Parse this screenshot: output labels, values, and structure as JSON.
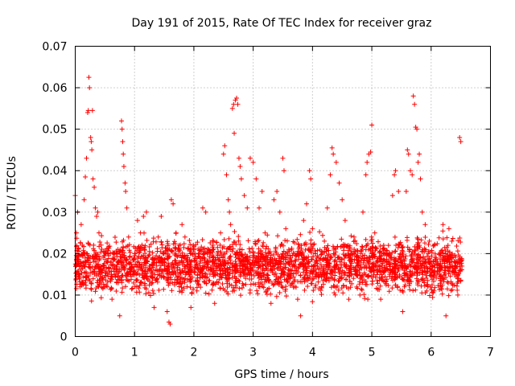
{
  "chart_data": {
    "type": "scatter",
    "title": "Day 191 of 2015, Rate Of TEC Index for receiver graz",
    "xlabel": "GPS time / hours",
    "ylabel": "ROTI / TECUs",
    "xlim": [
      0,
      7
    ],
    "ylim": [
      0,
      0.07
    ],
    "x_ticks": [
      "0",
      "1",
      "2",
      "3",
      "4",
      "5",
      "6",
      "7"
    ],
    "y_ticks": [
      "0",
      "0.01",
      "0.02",
      "0.03",
      "0.04",
      "0.05",
      "0.06",
      "0.07"
    ],
    "grid": true,
    "marker": "+",
    "series_color": "#ff0000",
    "series": [
      {
        "name": "ROTI",
        "points": [
          [
            0.0,
            0.034
          ],
          [
            0.02,
            0.025
          ],
          [
            0.04,
            0.03
          ],
          [
            0.06,
            0.018
          ],
          [
            0.08,
            0.012
          ],
          [
            0.1,
            0.027
          ],
          [
            0.12,
            0.022
          ],
          [
            0.15,
            0.033
          ],
          [
            0.17,
            0.0385
          ],
          [
            0.19,
            0.043
          ],
          [
            0.21,
            0.054
          ],
          [
            0.22,
            0.0545
          ],
          [
            0.23,
            0.0625
          ],
          [
            0.24,
            0.06
          ],
          [
            0.26,
            0.048
          ],
          [
            0.27,
            0.047
          ],
          [
            0.28,
            0.045
          ],
          [
            0.29,
            0.0545
          ],
          [
            0.3,
            0.038
          ],
          [
            0.32,
            0.036
          ],
          [
            0.34,
            0.031
          ],
          [
            0.36,
            0.029
          ],
          [
            0.38,
            0.03
          ],
          [
            0.4,
            0.025
          ],
          [
            0.42,
            0.015
          ],
          [
            0.45,
            0.014
          ],
          [
            0.48,
            0.017
          ],
          [
            0.5,
            0.012
          ],
          [
            0.55,
            0.02
          ],
          [
            0.6,
            0.018
          ],
          [
            0.62,
            0.009
          ],
          [
            0.66,
            0.015
          ],
          [
            0.7,
            0.013
          ],
          [
            0.72,
            0.021
          ],
          [
            0.75,
            0.005
          ],
          [
            0.78,
            0.052
          ],
          [
            0.79,
            0.05
          ],
          [
            0.8,
            0.047
          ],
          [
            0.81,
            0.044
          ],
          [
            0.82,
            0.041
          ],
          [
            0.84,
            0.037
          ],
          [
            0.85,
            0.035
          ],
          [
            0.87,
            0.031
          ],
          [
            0.9,
            0.024
          ],
          [
            0.95,
            0.016
          ],
          [
            1.0,
            0.02
          ],
          [
            1.05,
            0.028
          ],
          [
            1.1,
            0.025
          ],
          [
            1.15,
            0.029
          ],
          [
            1.2,
            0.03
          ],
          [
            1.25,
            0.017
          ],
          [
            1.3,
            0.013
          ],
          [
            1.33,
            0.007
          ],
          [
            1.4,
            0.024
          ],
          [
            1.45,
            0.029
          ],
          [
            1.5,
            0.018
          ],
          [
            1.55,
            0.006
          ],
          [
            1.58,
            0.0035
          ],
          [
            1.6,
            0.003
          ],
          [
            1.62,
            0.033
          ],
          [
            1.65,
            0.032
          ],
          [
            1.7,
            0.025
          ],
          [
            1.75,
            0.022
          ],
          [
            1.8,
            0.027
          ],
          [
            1.85,
            0.024
          ],
          [
            1.9,
            0.018
          ],
          [
            1.95,
            0.007
          ],
          [
            2.0,
            0.021
          ],
          [
            2.05,
            0.011
          ],
          [
            2.1,
            0.015
          ],
          [
            2.15,
            0.031
          ],
          [
            2.2,
            0.03
          ],
          [
            2.25,
            0.021
          ],
          [
            2.3,
            0.016
          ],
          [
            2.35,
            0.008
          ],
          [
            2.4,
            0.019
          ],
          [
            2.45,
            0.025
          ],
          [
            2.5,
            0.044
          ],
          [
            2.52,
            0.046
          ],
          [
            2.55,
            0.039
          ],
          [
            2.58,
            0.033
          ],
          [
            2.6,
            0.03
          ],
          [
            2.62,
            0.027
          ],
          [
            2.65,
            0.055
          ],
          [
            2.67,
            0.056
          ],
          [
            2.68,
            0.049
          ],
          [
            2.7,
            0.057
          ],
          [
            2.72,
            0.0575
          ],
          [
            2.74,
            0.056
          ],
          [
            2.76,
            0.043
          ],
          [
            2.78,
            0.041
          ],
          [
            2.8,
            0.038
          ],
          [
            2.85,
            0.034
          ],
          [
            2.9,
            0.031
          ],
          [
            2.95,
            0.043
          ],
          [
            3.0,
            0.042
          ],
          [
            3.05,
            0.038
          ],
          [
            3.1,
            0.031
          ],
          [
            3.15,
            0.035
          ],
          [
            3.2,
            0.025
          ],
          [
            3.25,
            0.016
          ],
          [
            3.3,
            0.008
          ],
          [
            3.35,
            0.033
          ],
          [
            3.4,
            0.035
          ],
          [
            3.45,
            0.03
          ],
          [
            3.5,
            0.043
          ],
          [
            3.52,
            0.04
          ],
          [
            3.55,
            0.026
          ],
          [
            3.6,
            0.021
          ],
          [
            3.65,
            0.018
          ],
          [
            3.7,
            0.012
          ],
          [
            3.75,
            0.009
          ],
          [
            3.8,
            0.005
          ],
          [
            3.85,
            0.028
          ],
          [
            3.9,
            0.032
          ],
          [
            3.95,
            0.04
          ],
          [
            3.97,
            0.038
          ],
          [
            4.0,
            0.026
          ],
          [
            4.05,
            0.02
          ],
          [
            4.1,
            0.015
          ],
          [
            4.15,
            0.012
          ],
          [
            4.2,
            0.023
          ],
          [
            4.25,
            0.031
          ],
          [
            4.3,
            0.039
          ],
          [
            4.33,
            0.0455
          ],
          [
            4.35,
            0.044
          ],
          [
            4.4,
            0.042
          ],
          [
            4.45,
            0.037
          ],
          [
            4.5,
            0.033
          ],
          [
            4.55,
            0.028
          ],
          [
            4.6,
            0.022
          ],
          [
            4.65,
            0.018
          ],
          [
            4.7,
            0.024
          ],
          [
            4.75,
            0.015
          ],
          [
            4.8,
            0.01
          ],
          [
            4.85,
            0.03
          ],
          [
            4.9,
            0.039
          ],
          [
            4.92,
            0.042
          ],
          [
            4.95,
            0.044
          ],
          [
            4.98,
            0.0445
          ],
          [
            5.0,
            0.051
          ],
          [
            5.05,
            0.025
          ],
          [
            5.1,
            0.018
          ],
          [
            5.15,
            0.009
          ],
          [
            5.2,
            0.022
          ],
          [
            5.25,
            0.018
          ],
          [
            5.3,
            0.015
          ],
          [
            5.35,
            0.034
          ],
          [
            5.38,
            0.039
          ],
          [
            5.4,
            0.04
          ],
          [
            5.45,
            0.035
          ],
          [
            5.5,
            0.022
          ],
          [
            5.52,
            0.006
          ],
          [
            5.55,
            0.012
          ],
          [
            5.58,
            0.035
          ],
          [
            5.6,
            0.045
          ],
          [
            5.62,
            0.044
          ],
          [
            5.65,
            0.04
          ],
          [
            5.68,
            0.039
          ],
          [
            5.7,
            0.058
          ],
          [
            5.72,
            0.056
          ],
          [
            5.74,
            0.0505
          ],
          [
            5.76,
            0.05
          ],
          [
            5.78,
            0.042
          ],
          [
            5.8,
            0.044
          ],
          [
            5.82,
            0.038
          ],
          [
            5.85,
            0.03
          ],
          [
            5.9,
            0.027
          ],
          [
            5.95,
            0.02
          ],
          [
            6.0,
            0.018
          ],
          [
            6.05,
            0.011
          ],
          [
            6.1,
            0.015
          ],
          [
            6.15,
            0.02
          ],
          [
            6.2,
            0.027
          ],
          [
            6.25,
            0.005
          ],
          [
            6.3,
            0.026
          ],
          [
            6.35,
            0.023
          ],
          [
            6.4,
            0.017
          ],
          [
            6.45,
            0.01
          ],
          [
            6.48,
            0.048
          ],
          [
            6.5,
            0.047
          ],
          [
            6.52,
            0.017
          ]
        ]
      }
    ],
    "band_min": 0.01,
    "band_max": 0.023
  }
}
